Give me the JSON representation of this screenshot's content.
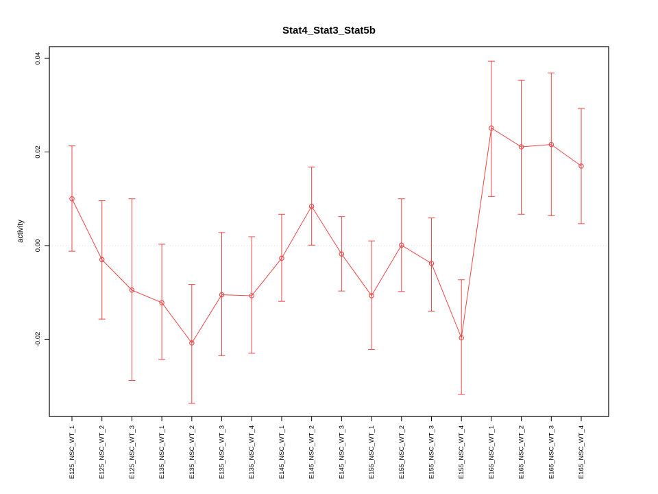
{
  "chart_data": {
    "type": "line",
    "title": "Stat4_Stat3_Stat5b",
    "xlabel": "",
    "ylabel": "activity",
    "legend": "none",
    "grid": false,
    "zero_line": true,
    "marker": "open-circle",
    "error_bars": true,
    "ylim": [
      -0.0365,
      0.0425
    ],
    "y_ticks": [
      -0.02,
      0.0,
      0.02,
      0.04
    ],
    "categories": [
      "E125_NSC_WT_1",
      "E125_NSC_WT_2",
      "E125_NSC_WT_3",
      "E135_NSC_WT_1",
      "E135_NSC_WT_2",
      "E135_NSC_WT_3",
      "E135_NSC_WT_4",
      "E145_NSC_WT_1",
      "E145_NSC_WT_2",
      "E145_NSC_WT_3",
      "E155_NSC_WT_1",
      "E155_NSC_WT_2",
      "E155_NSC_WT_3",
      "E155_NSC_WT_4",
      "E165_NSC_WT_1",
      "E165_NSC_WT_2",
      "E165_NSC_WT_3",
      "E165_NSC_WT_4"
    ],
    "values": [
      0.01,
      -0.003,
      -0.0095,
      -0.0122,
      -0.0208,
      -0.0105,
      -0.0107,
      -0.0027,
      0.0084,
      -0.0018,
      -0.0107,
      0.0001,
      -0.0038,
      -0.0197,
      0.0251,
      0.0211,
      0.0216,
      0.017
    ],
    "error_upper": [
      0.0213,
      0.0096,
      0.01,
      0.0003,
      -0.0083,
      0.0028,
      0.0019,
      0.0067,
      0.0168,
      0.0062,
      0.001,
      0.01,
      0.0059,
      -0.0073,
      0.0394,
      0.0353,
      0.0369,
      0.0293
    ],
    "error_lower": [
      -0.0012,
      -0.0157,
      -0.0288,
      -0.0243,
      -0.0337,
      -0.0235,
      -0.023,
      -0.0119,
      0.0001,
      -0.0097,
      -0.0222,
      -0.0098,
      -0.014,
      -0.0318,
      0.0105,
      0.0067,
      0.0064,
      0.0047
    ],
    "colors": {
      "series": "#ee4444",
      "zero_line": "#d8d8d8",
      "axis": "#000000",
      "background": "#ffffff"
    }
  }
}
